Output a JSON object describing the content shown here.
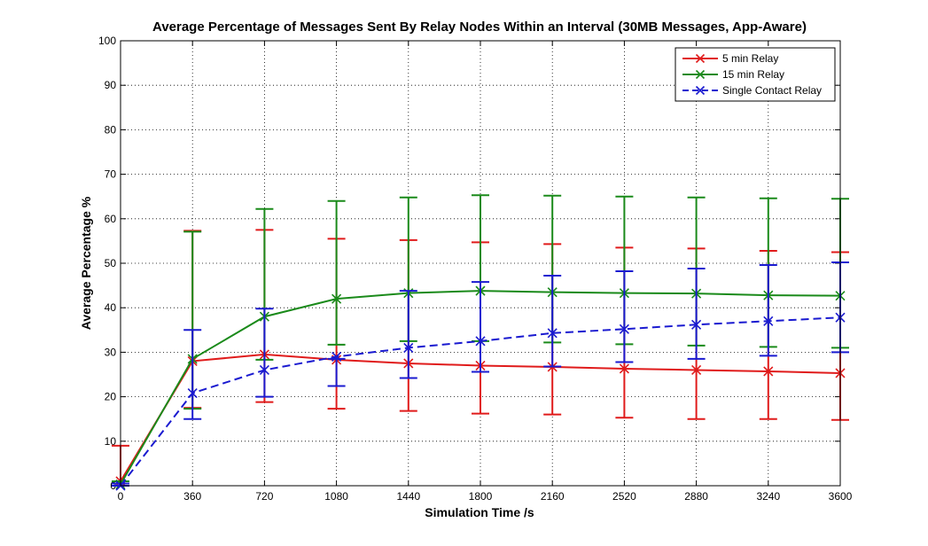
{
  "chart_data": {
    "type": "line",
    "title": "Average Percentage of Messages Sent By Relay Nodes Within an Interval (30MB Messages, App-Aware)",
    "xlabel": "Simulation Time /s",
    "ylabel": "Average Percentage %",
    "xlim": [
      0,
      3600
    ],
    "ylim": [
      0,
      100
    ],
    "x": [
      0,
      360,
      720,
      1080,
      1440,
      1800,
      2160,
      2520,
      2880,
      3240,
      3600
    ],
    "xticks": [
      "0",
      "360",
      "720",
      "1080",
      "1440",
      "1800",
      "2160",
      "2520",
      "2880",
      "3240",
      "3600"
    ],
    "yticks": [
      "0",
      "10",
      "20",
      "30",
      "40",
      "50",
      "60",
      "70",
      "80",
      "90",
      "100"
    ],
    "grid": true,
    "legend_position": "top-right",
    "series": [
      {
        "name": "5 min Relay",
        "color": "#e01b1b",
        "dash": "solid",
        "values": [
          1,
          28,
          29.5,
          28.3,
          27.5,
          27,
          26.7,
          26.3,
          26,
          25.7,
          25.3
        ],
        "err_low": [
          0,
          17.5,
          18.8,
          17.3,
          16.8,
          16.2,
          16,
          15.3,
          15,
          15,
          14.8
        ],
        "err_high": [
          9,
          57.3,
          57.5,
          55.5,
          55.2,
          54.7,
          54.3,
          53.5,
          53.3,
          52.8,
          52.5
        ]
      },
      {
        "name": "15 min Relay",
        "color": "#1a8a1a",
        "dash": "solid",
        "values": [
          0.3,
          28.5,
          38,
          42,
          43.3,
          43.8,
          43.5,
          43.3,
          43.2,
          42.8,
          42.7
        ],
        "err_low": [
          0,
          17.3,
          28.3,
          31.7,
          32.5,
          32.5,
          32.2,
          31.8,
          31.5,
          31.2,
          31
        ],
        "err_high": [
          1,
          57.1,
          62.2,
          64,
          64.8,
          65.3,
          65.2,
          65,
          64.8,
          64.6,
          64.5
        ]
      },
      {
        "name": "Single Contact Relay",
        "color": "#1a1ad0",
        "dash": "dashed",
        "values": [
          0,
          20.8,
          26,
          29,
          31,
          32.5,
          34.3,
          35.2,
          36.2,
          37,
          37.8
        ],
        "err_low": [
          0,
          15,
          20,
          22.4,
          24.2,
          25.6,
          26.8,
          27.8,
          28.5,
          29.2,
          30
        ],
        "err_high": [
          0.5,
          35,
          39.8,
          28.5,
          43.8,
          45.8,
          47.2,
          48.2,
          48.8,
          49.6,
          50.2
        ]
      }
    ]
  }
}
